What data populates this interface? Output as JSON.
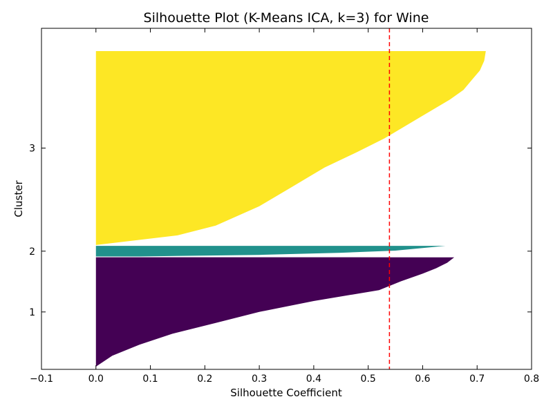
{
  "chart_data": {
    "type": "area",
    "title": "Silhouette Plot (K-Means ICA, k=3) for Wine",
    "xlabel": "Silhouette Coefficient",
    "ylabel": "Cluster",
    "xlim": [
      -0.1,
      0.8
    ],
    "xticks": [
      -0.1,
      0.0,
      0.1,
      0.2,
      0.3,
      0.4,
      0.5,
      0.6,
      0.7,
      0.8
    ],
    "xtick_labels": [
      "−0.1",
      "0.0",
      "0.1",
      "0.2",
      "0.3",
      "0.4",
      "0.5",
      "0.6",
      "0.7",
      "0.8"
    ],
    "yticks": [
      {
        "label": "1",
        "cluster": 1
      },
      {
        "label": "2",
        "cluster": 2
      },
      {
        "label": "3",
        "cluster": 3
      }
    ],
    "clusters": [
      {
        "label": "1",
        "color": "#440154",
        "size": 62,
        "profile": [
          [
            0.0,
            0.0
          ],
          [
            0.1,
            0.03
          ],
          [
            0.2,
            0.08
          ],
          [
            0.3,
            0.14
          ],
          [
            0.4,
            0.22
          ],
          [
            0.5,
            0.3
          ],
          [
            0.6,
            0.4
          ],
          [
            0.7,
            0.52
          ],
          [
            0.78,
            0.56
          ],
          [
            0.85,
            0.6
          ],
          [
            0.9,
            0.625
          ],
          [
            0.95,
            0.645
          ],
          [
            1.0,
            0.658
          ]
        ]
      },
      {
        "label": "2",
        "color": "#21918c",
        "size": 6,
        "profile": [
          [
            0.0,
            0.08
          ],
          [
            0.15,
            0.3
          ],
          [
            0.35,
            0.45
          ],
          [
            0.55,
            0.55
          ],
          [
            0.75,
            0.59
          ],
          [
            0.9,
            0.62
          ],
          [
            1.0,
            0.642
          ]
        ]
      },
      {
        "label": "3",
        "color": "#fde725",
        "size": 110,
        "profile": [
          [
            0.0,
            0.0
          ],
          [
            0.05,
            0.15
          ],
          [
            0.1,
            0.22
          ],
          [
            0.2,
            0.3
          ],
          [
            0.3,
            0.36
          ],
          [
            0.4,
            0.42
          ],
          [
            0.48,
            0.48
          ],
          [
            0.55,
            0.53
          ],
          [
            0.6,
            0.56
          ],
          [
            0.65,
            0.59
          ],
          [
            0.7,
            0.62
          ],
          [
            0.75,
            0.65
          ],
          [
            0.8,
            0.675
          ],
          [
            0.85,
            0.69
          ],
          [
            0.9,
            0.705
          ],
          [
            0.95,
            0.713
          ],
          [
            1.0,
            0.716
          ]
        ]
      }
    ],
    "average_silhouette": 0.539,
    "average_line_color": "#ff0000",
    "grid": false
  }
}
